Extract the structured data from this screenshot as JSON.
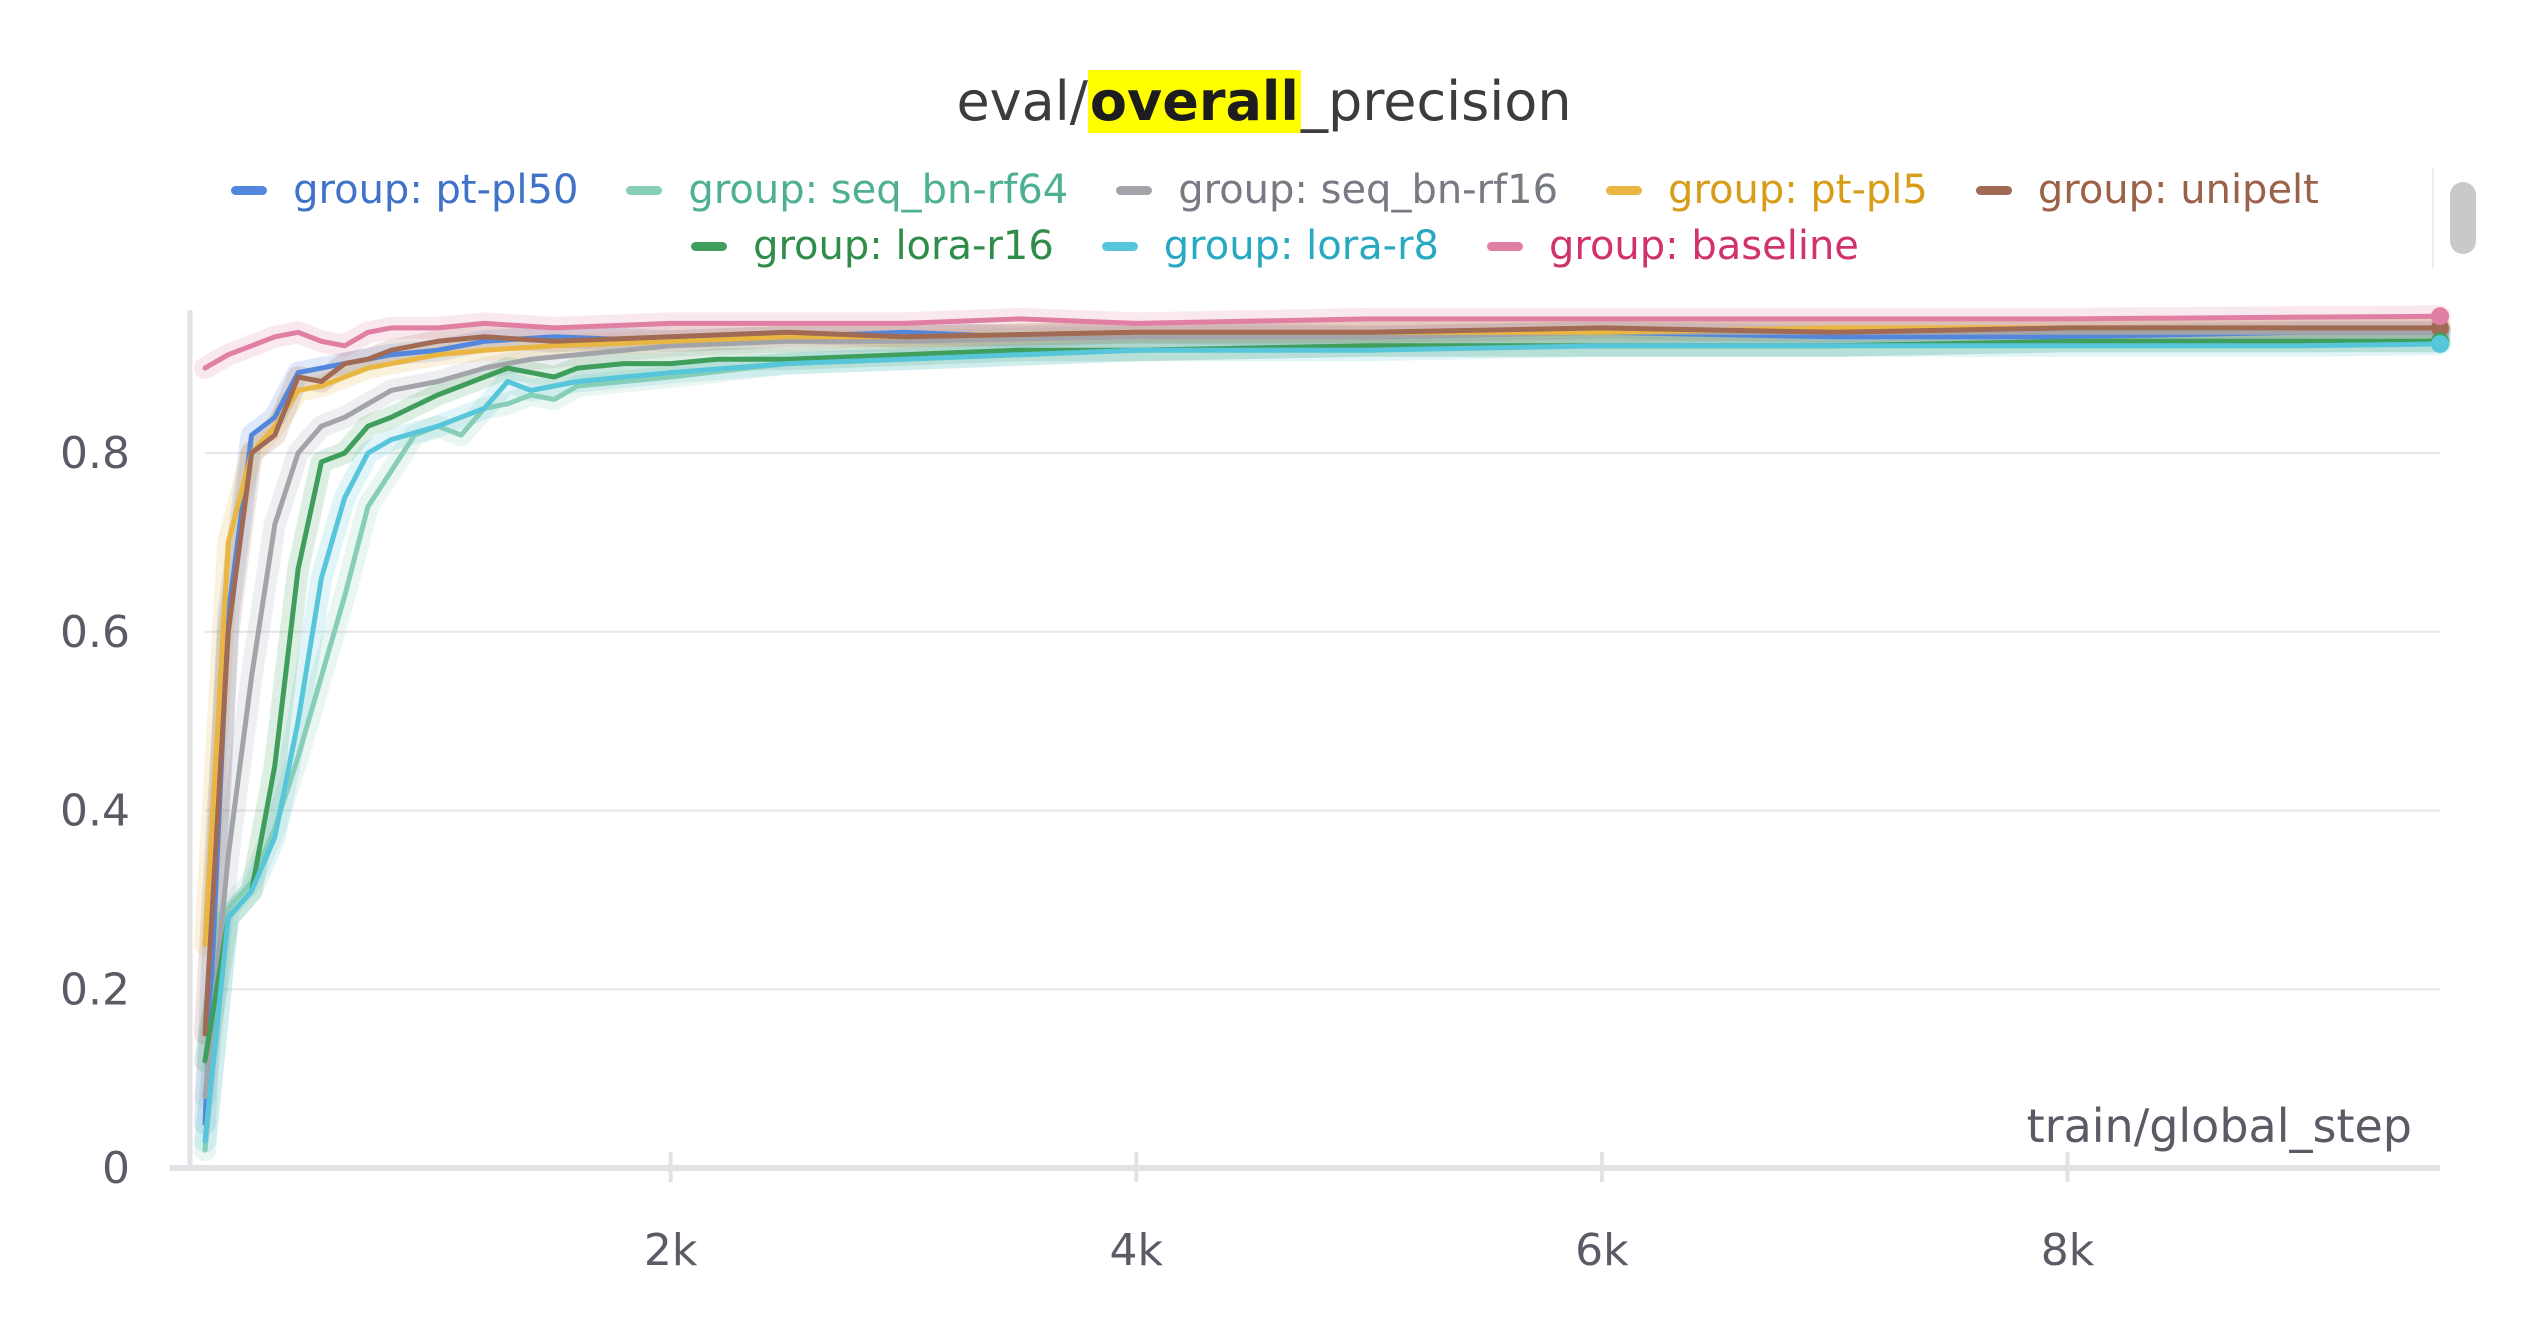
{
  "panel": {
    "title_prefix": "eval/",
    "title_highlight": "overall",
    "title_suffix": "_precision"
  },
  "chart_data": {
    "type": "line",
    "title": "eval/overall_precision",
    "xlabel": "train/global_step",
    "ylabel": "",
    "xlim": [
      0,
      9600
    ],
    "ylim": [
      0,
      0.96
    ],
    "x_ticks": [
      {
        "value": 2000,
        "label": "2k"
      },
      {
        "value": 4000,
        "label": "4k"
      },
      {
        "value": 6000,
        "label": "6k"
      },
      {
        "value": 8000,
        "label": "8k"
      }
    ],
    "y_ticks": [
      {
        "value": 0,
        "label": "0"
      },
      {
        "value": 0.2,
        "label": "0.2"
      },
      {
        "value": 0.4,
        "label": "0.4"
      },
      {
        "value": 0.6,
        "label": "0.6"
      },
      {
        "value": 0.8,
        "label": "0.8"
      }
    ],
    "grid": "horizontal",
    "legend_position": "top",
    "series": [
      {
        "name": "group: pt-pl50",
        "color": "#5387dd",
        "text_color": "#3f72c8",
        "points": [
          [
            0,
            0.05
          ],
          [
            100,
            0.62
          ],
          [
            200,
            0.82
          ],
          [
            300,
            0.84
          ],
          [
            400,
            0.89
          ],
          [
            500,
            0.895
          ],
          [
            600,
            0.9
          ],
          [
            700,
            0.905
          ],
          [
            800,
            0.91
          ],
          [
            1000,
            0.915
          ],
          [
            1200,
            0.925
          ],
          [
            1500,
            0.93
          ],
          [
            2000,
            0.925
          ],
          [
            2500,
            0.93
          ],
          [
            3000,
            0.935
          ],
          [
            3500,
            0.93
          ],
          [
            4000,
            0.935
          ],
          [
            5000,
            0.93
          ],
          [
            6000,
            0.935
          ],
          [
            7000,
            0.93
          ],
          [
            8000,
            0.93
          ],
          [
            9000,
            0.935
          ],
          [
            9600,
            0.935
          ]
        ]
      },
      {
        "name": "group: seq_bn-rf64",
        "color": "#87ceb8",
        "text_color": "#4daf93",
        "points": [
          [
            0,
            0.02
          ],
          [
            100,
            0.29
          ],
          [
            200,
            0.32
          ],
          [
            300,
            0.38
          ],
          [
            400,
            0.46
          ],
          [
            500,
            0.55
          ],
          [
            600,
            0.64
          ],
          [
            700,
            0.74
          ],
          [
            800,
            0.78
          ],
          [
            900,
            0.82
          ],
          [
            1000,
            0.83
          ],
          [
            1100,
            0.82
          ],
          [
            1200,
            0.85
          ],
          [
            1300,
            0.855
          ],
          [
            1400,
            0.865
          ],
          [
            1500,
            0.86
          ],
          [
            1600,
            0.875
          ],
          [
            1800,
            0.88
          ],
          [
            2000,
            0.885
          ],
          [
            2500,
            0.9
          ],
          [
            3000,
            0.905
          ],
          [
            3500,
            0.91
          ],
          [
            4000,
            0.915
          ],
          [
            5000,
            0.92
          ],
          [
            6000,
            0.92
          ],
          [
            7000,
            0.92
          ],
          [
            8000,
            0.925
          ],
          [
            9000,
            0.925
          ],
          [
            9600,
            0.925
          ]
        ]
      },
      {
        "name": "group: seq_bn-rf16",
        "color": "#a2a4aa",
        "text_color": "#777a82",
        "points": [
          [
            0,
            0.08
          ],
          [
            100,
            0.35
          ],
          [
            200,
            0.55
          ],
          [
            300,
            0.72
          ],
          [
            400,
            0.8
          ],
          [
            500,
            0.83
          ],
          [
            600,
            0.84
          ],
          [
            700,
            0.855
          ],
          [
            800,
            0.87
          ],
          [
            1000,
            0.88
          ],
          [
            1200,
            0.895
          ],
          [
            1400,
            0.905
          ],
          [
            1600,
            0.91
          ],
          [
            2000,
            0.92
          ],
          [
            2500,
            0.925
          ],
          [
            3000,
            0.925
          ],
          [
            4000,
            0.93
          ],
          [
            5000,
            0.93
          ],
          [
            6000,
            0.935
          ],
          [
            7000,
            0.935
          ],
          [
            8000,
            0.935
          ],
          [
            9000,
            0.935
          ],
          [
            9600,
            0.935
          ]
        ]
      },
      {
        "name": "group: pt-pl5",
        "color": "#e9b741",
        "text_color": "#d79c18",
        "points": [
          [
            0,
            0.25
          ],
          [
            100,
            0.7
          ],
          [
            200,
            0.8
          ],
          [
            300,
            0.83
          ],
          [
            400,
            0.87
          ],
          [
            500,
            0.875
          ],
          [
            600,
            0.885
          ],
          [
            700,
            0.895
          ],
          [
            800,
            0.9
          ],
          [
            1000,
            0.91
          ],
          [
            1200,
            0.915
          ],
          [
            1500,
            0.92
          ],
          [
            2000,
            0.925
          ],
          [
            2500,
            0.93
          ],
          [
            3000,
            0.93
          ],
          [
            4000,
            0.935
          ],
          [
            5000,
            0.935
          ],
          [
            6000,
            0.935
          ],
          [
            7000,
            0.94
          ],
          [
            8000,
            0.94
          ],
          [
            9000,
            0.94
          ],
          [
            9600,
            0.94
          ]
        ]
      },
      {
        "name": "group: unipelt",
        "color": "#a06a54",
        "text_color": "#9b6249",
        "points": [
          [
            0,
            0.15
          ],
          [
            100,
            0.6
          ],
          [
            200,
            0.8
          ],
          [
            300,
            0.82
          ],
          [
            400,
            0.885
          ],
          [
            500,
            0.88
          ],
          [
            600,
            0.9
          ],
          [
            700,
            0.905
          ],
          [
            800,
            0.915
          ],
          [
            1000,
            0.925
          ],
          [
            1200,
            0.93
          ],
          [
            1500,
            0.925
          ],
          [
            2000,
            0.93
          ],
          [
            2500,
            0.935
          ],
          [
            3000,
            0.93
          ],
          [
            4000,
            0.935
          ],
          [
            5000,
            0.935
          ],
          [
            6000,
            0.94
          ],
          [
            7000,
            0.935
          ],
          [
            8000,
            0.94
          ],
          [
            9000,
            0.94
          ],
          [
            9600,
            0.94
          ]
        ]
      },
      {
        "name": "group: lora-r16",
        "color": "#409e5c",
        "text_color": "#2f8c4a",
        "points": [
          [
            0,
            0.12
          ],
          [
            100,
            0.28
          ],
          [
            200,
            0.31
          ],
          [
            300,
            0.45
          ],
          [
            400,
            0.67
          ],
          [
            500,
            0.79
          ],
          [
            600,
            0.8
          ],
          [
            700,
            0.83
          ],
          [
            800,
            0.84
          ],
          [
            1000,
            0.865
          ],
          [
            1100,
            0.875
          ],
          [
            1200,
            0.885
          ],
          [
            1300,
            0.895
          ],
          [
            1400,
            0.89
          ],
          [
            1500,
            0.885
          ],
          [
            1600,
            0.895
          ],
          [
            1800,
            0.9
          ],
          [
            2000,
            0.9
          ],
          [
            2200,
            0.905
          ],
          [
            2500,
            0.905
          ],
          [
            3000,
            0.91
          ],
          [
            3500,
            0.915
          ],
          [
            4000,
            0.915
          ],
          [
            5000,
            0.92
          ],
          [
            6000,
            0.92
          ],
          [
            7000,
            0.92
          ],
          [
            8000,
            0.925
          ],
          [
            9000,
            0.925
          ],
          [
            9600,
            0.925
          ]
        ]
      },
      {
        "name": "group: lora-r8",
        "color": "#58c6da",
        "text_color": "#27a9c2",
        "points": [
          [
            0,
            0.03
          ],
          [
            100,
            0.28
          ],
          [
            200,
            0.31
          ],
          [
            300,
            0.37
          ],
          [
            400,
            0.5
          ],
          [
            500,
            0.66
          ],
          [
            600,
            0.75
          ],
          [
            700,
            0.8
          ],
          [
            800,
            0.815
          ],
          [
            1000,
            0.83
          ],
          [
            1200,
            0.85
          ],
          [
            1300,
            0.88
          ],
          [
            1400,
            0.87
          ],
          [
            1500,
            0.875
          ],
          [
            1600,
            0.88
          ],
          [
            1800,
            0.885
          ],
          [
            2000,
            0.89
          ],
          [
            2500,
            0.9
          ],
          [
            3000,
            0.905
          ],
          [
            3500,
            0.91
          ],
          [
            4000,
            0.915
          ],
          [
            5000,
            0.915
          ],
          [
            6000,
            0.92
          ],
          [
            7000,
            0.92
          ],
          [
            8000,
            0.92
          ],
          [
            9000,
            0.92
          ],
          [
            9600,
            0.922
          ]
        ]
      },
      {
        "name": "group: baseline",
        "color": "#e07fa3",
        "text_color": "#d1326e",
        "points": [
          [
            0,
            0.895
          ],
          [
            100,
            0.91
          ],
          [
            200,
            0.92
          ],
          [
            300,
            0.93
          ],
          [
            400,
            0.935
          ],
          [
            500,
            0.925
          ],
          [
            600,
            0.92
          ],
          [
            700,
            0.935
          ],
          [
            800,
            0.94
          ],
          [
            1000,
            0.94
          ],
          [
            1200,
            0.945
          ],
          [
            1500,
            0.94
          ],
          [
            2000,
            0.945
          ],
          [
            2500,
            0.945
          ],
          [
            3000,
            0.945
          ],
          [
            3500,
            0.95
          ],
          [
            4000,
            0.945
          ],
          [
            5000,
            0.95
          ],
          [
            6000,
            0.95
          ],
          [
            7000,
            0.95
          ],
          [
            8000,
            0.95
          ],
          [
            9000,
            0.952
          ],
          [
            9600,
            0.953
          ]
        ]
      }
    ]
  }
}
